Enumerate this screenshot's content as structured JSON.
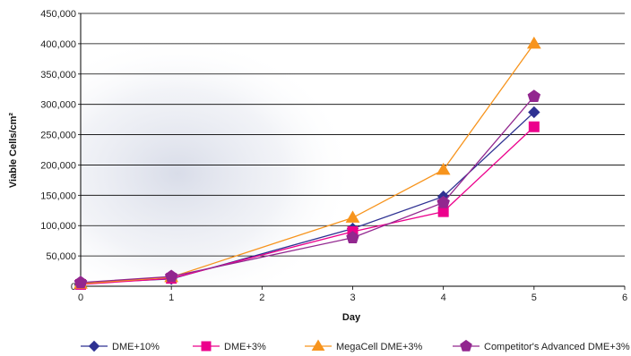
{
  "chart_data": {
    "type": "line",
    "title": "",
    "xlabel": "Day",
    "ylabel": "Viable Cells/cm²",
    "xlim": [
      0,
      6
    ],
    "ylim": [
      0,
      450000
    ],
    "x_ticks": [
      0,
      1,
      2,
      3,
      4,
      5,
      6
    ],
    "y_ticks": [
      0,
      50000,
      100000,
      150000,
      200000,
      250000,
      300000,
      350000,
      400000,
      450000
    ],
    "y_tick_labels": [
      "0",
      "50,000",
      "100,000",
      "150,000",
      "200,000",
      "250,000",
      "300,000",
      "350,000",
      "400,000",
      "450,000"
    ],
    "grid": "horizontal",
    "legend_position": "bottom",
    "series": [
      {
        "name": "DME+10%",
        "color": "#2e3192",
        "marker": "diamond",
        "x": [
          0,
          1,
          3,
          4,
          5
        ],
        "y": [
          5000,
          12000,
          95000,
          148000,
          287000
        ]
      },
      {
        "name": "DME+3%",
        "color": "#ec008c",
        "marker": "square",
        "x": [
          0,
          1,
          3,
          4,
          5
        ],
        "y": [
          3000,
          13000,
          90000,
          123000,
          263000
        ]
      },
      {
        "name": "MegaCell DME+3%",
        "color": "#f7941d",
        "marker": "triangle",
        "x": [
          0,
          1,
          3,
          4,
          5
        ],
        "y": [
          4000,
          15000,
          113000,
          192000,
          400000
        ]
      },
      {
        "name": "Competitor's Advanced DME+3%",
        "color": "#92278f",
        "marker": "pentagon",
        "x": [
          0,
          1,
          3,
          4,
          5
        ],
        "y": [
          6000,
          16000,
          80000,
          138000,
          313000
        ]
      }
    ]
  }
}
